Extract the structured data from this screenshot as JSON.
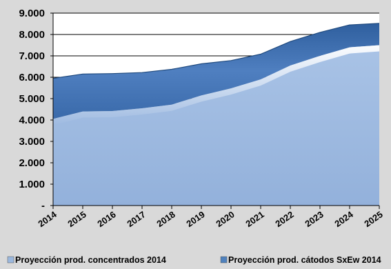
{
  "chart_data": {
    "type": "area",
    "stacked": true,
    "categories": [
      "2014",
      "2015",
      "2016",
      "2017",
      "2018",
      "2019",
      "2020",
      "2021",
      "2022",
      "2023",
      "2024",
      "2025"
    ],
    "series": [
      {
        "name": "Proyección prod. concentrados 2014",
        "values": [
          4050,
          4400,
          4420,
          4550,
          4720,
          5150,
          5480,
          5900,
          6550,
          7000,
          7400,
          7500
        ],
        "color": "#9bb8de"
      },
      {
        "name": "Proyección prod. cátodos SxEw 2014",
        "values": [
          1900,
          1750,
          1750,
          1670,
          1650,
          1480,
          1300,
          1180,
          1120,
          1100,
          1050,
          1020
        ],
        "color": "#4f81bd"
      }
    ],
    "ylim": [
      0,
      9000
    ],
    "yticks": [
      0,
      1000,
      2000,
      3000,
      4000,
      5000,
      6000,
      7000,
      8000,
      9000
    ],
    "ytick_labels": [
      "-",
      "1.000",
      "2.000",
      "3.000",
      "4.000",
      "5.000",
      "6.000",
      "7.000",
      "8.000",
      "9.000"
    ],
    "grid": true,
    "legend_position": "bottom"
  }
}
